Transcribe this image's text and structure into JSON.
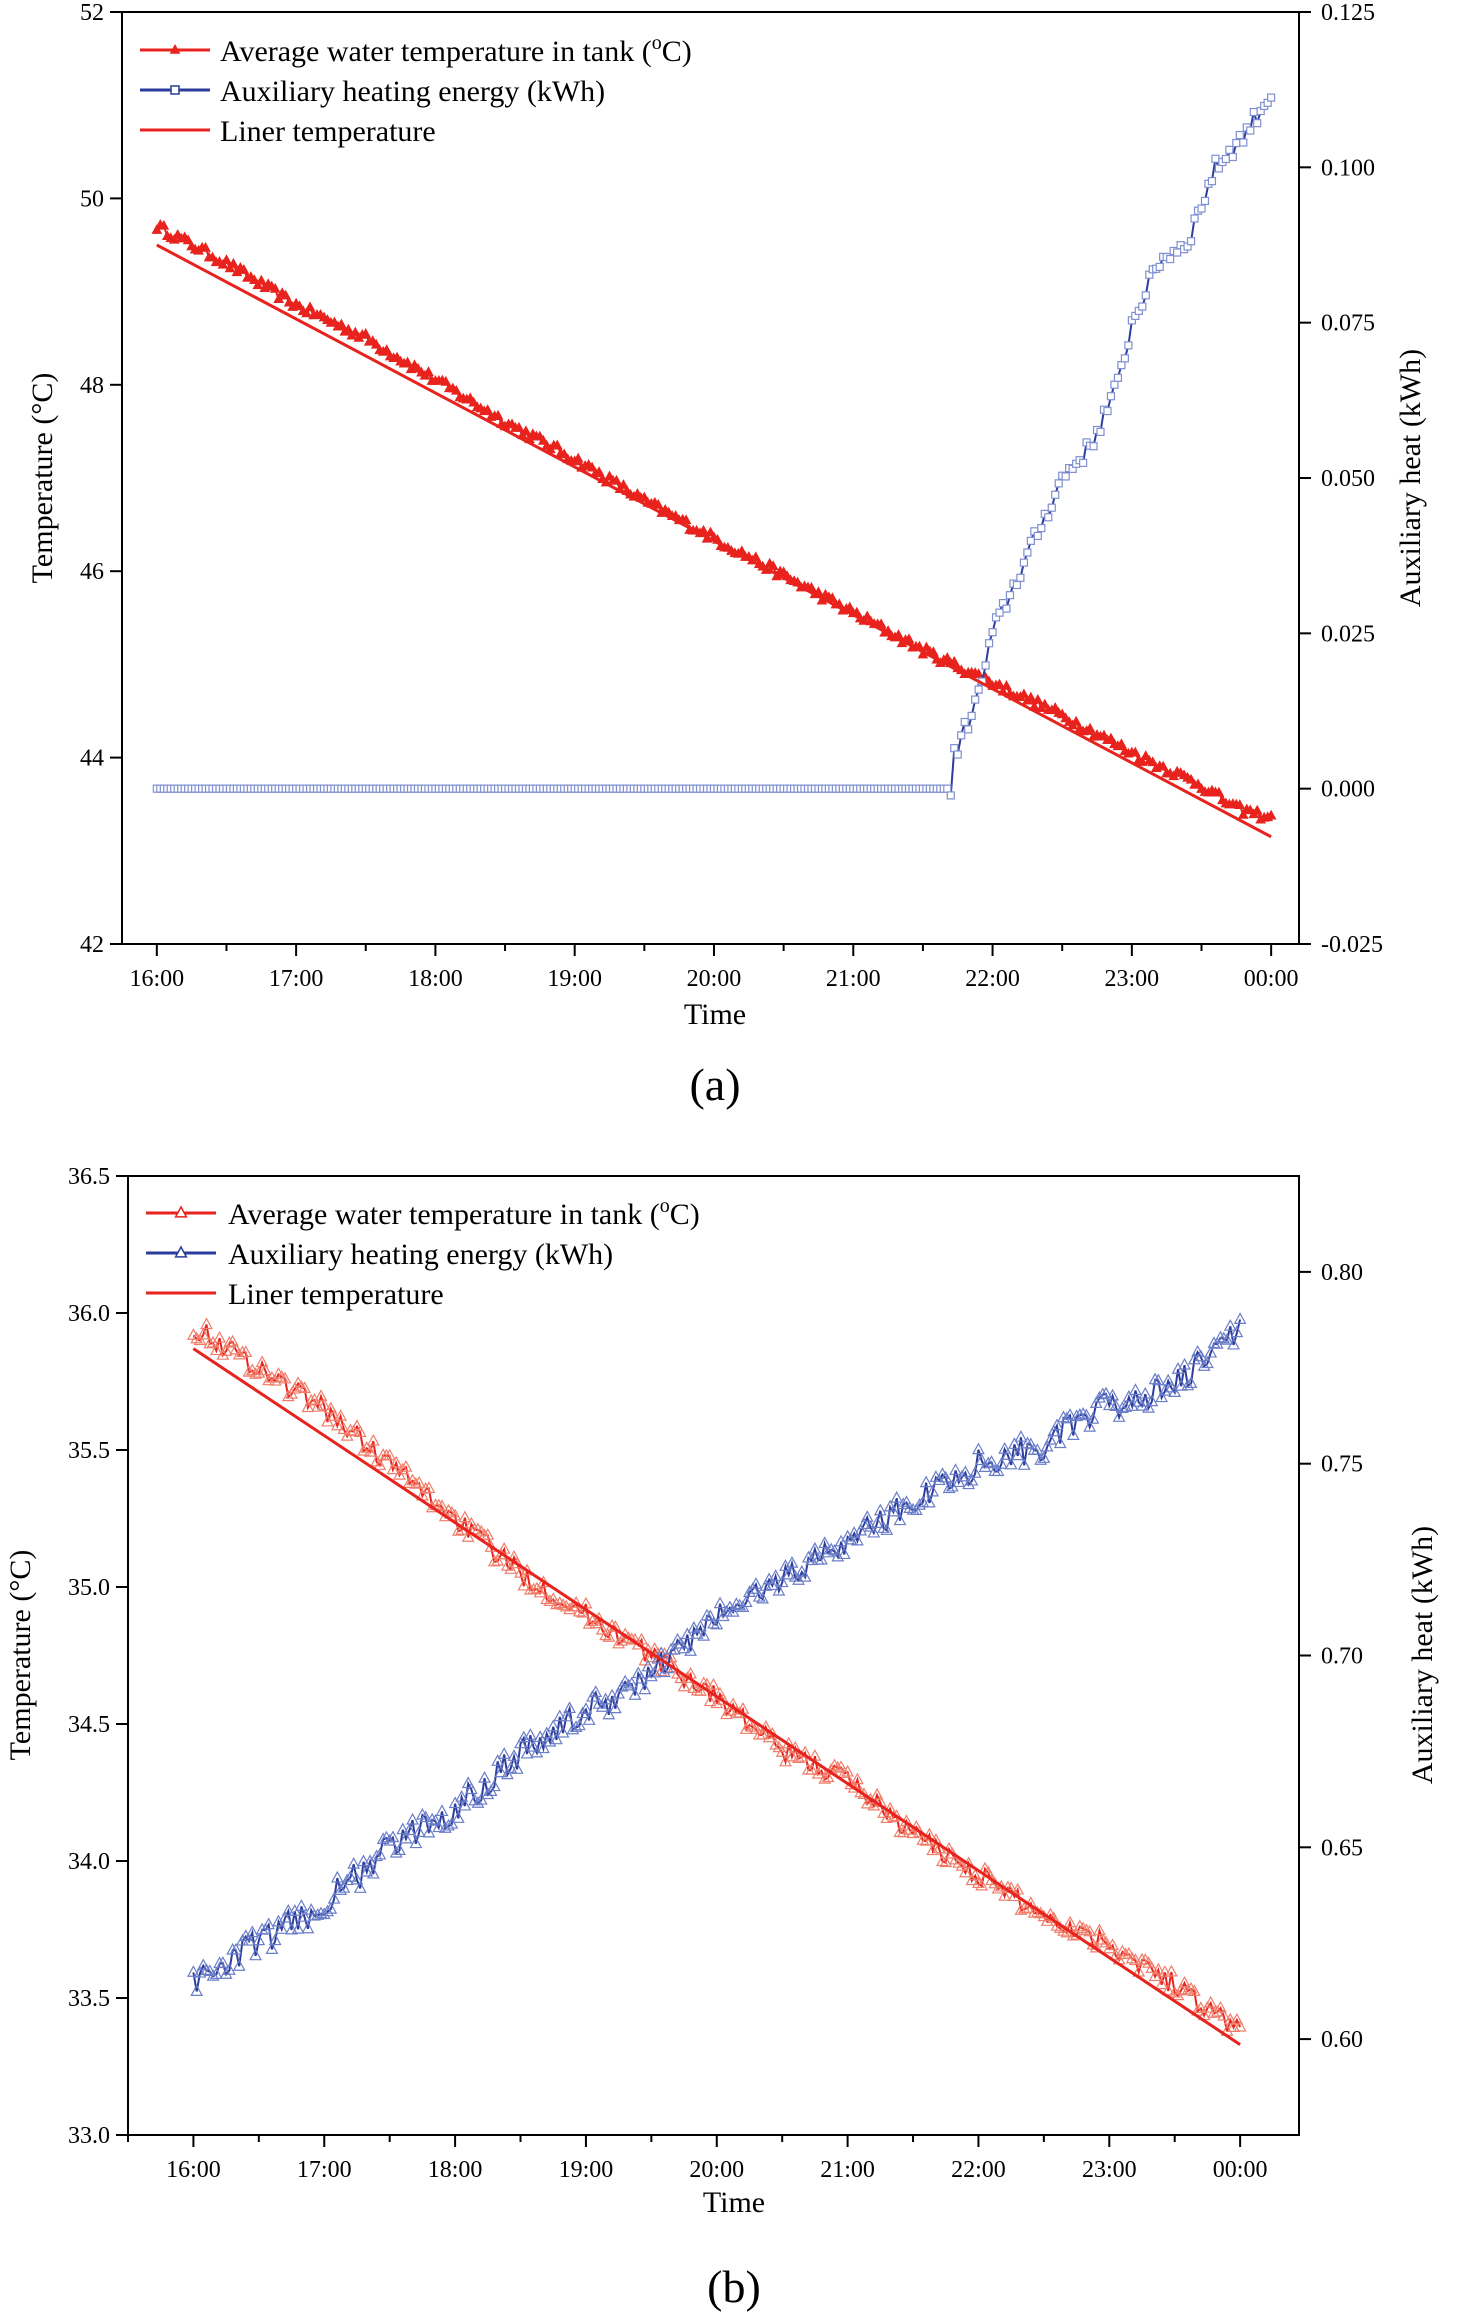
{
  "chart_data": [
    {
      "panel": "a",
      "type": "line",
      "caption": "(a)",
      "xlabel": "Time",
      "ylabel_left": "Temperature (°C)",
      "ylabel_right": "Auxiliary heat (kWh)",
      "x_tick_labels": [
        "16:00",
        "17:00",
        "18:00",
        "19:00",
        "20:00",
        "21:00",
        "22:00",
        "23:00",
        "00:00"
      ],
      "x_range_hours": [
        -0.25,
        8.2
      ],
      "ylim_left": [
        42,
        52
      ],
      "y_ticks_left": [
        42,
        44,
        46,
        48,
        50,
        52
      ],
      "ylim_right": [
        -0.025,
        0.125
      ],
      "y_ticks_right": [
        -0.025,
        0.0,
        0.025,
        0.05,
        0.075,
        0.1,
        0.125
      ],
      "right_tick_labels": [
        "-0.025",
        "0.000",
        "0.025",
        "0.050",
        "0.075",
        "0.100",
        "0.125"
      ],
      "legend": {
        "placement": "top-left",
        "entries": [
          {
            "label_pre": "Average water temperature in tank (",
            "label_sup": "o",
            "label_post": "C)",
            "color": "#e8221c",
            "marker": "triangle-filled"
          },
          {
            "label_pre": "Auxiliary heating energy (kWh)",
            "label_sup": "",
            "label_post": "",
            "color": "#2b3c9c",
            "marker": "square-open"
          },
          {
            "label_pre": "Liner temperature",
            "label_sup": "",
            "label_post": "",
            "color": "#e8221c",
            "marker": "none"
          }
        ]
      },
      "series": [
        {
          "name": "Average water temperature in tank",
          "axis": "left",
          "color": "#e8221c",
          "hours": [
            0,
            0.5,
            1,
            1.5,
            2,
            2.5,
            3,
            3.5,
            4,
            4.5,
            5,
            5.5,
            6,
            6.5,
            7,
            7.5,
            7.75,
            8
          ],
          "values": [
            49.7,
            49.3,
            48.85,
            48.5,
            48.05,
            47.6,
            47.2,
            46.75,
            46.35,
            45.95,
            45.55,
            45.15,
            44.8,
            44.45,
            44.05,
            43.7,
            43.45,
            43.35
          ]
        },
        {
          "name": "Auxiliary heating energy",
          "axis": "right",
          "color": "#2b3c9c",
          "hours": [
            0,
            1,
            2,
            3,
            4,
            5,
            5.7,
            5.72,
            5.9,
            6.0,
            6.1,
            6.2,
            6.3,
            6.5,
            6.7,
            6.9,
            7.0,
            7.2,
            7.4,
            7.6,
            7.8,
            8.0
          ],
          "values": [
            0.0,
            0.0,
            0.0,
            0.0,
            0.0,
            0.0,
            0.0,
            0.005,
            0.015,
            0.025,
            0.03,
            0.035,
            0.04,
            0.05,
            0.055,
            0.065,
            0.075,
            0.085,
            0.088,
            0.1,
            0.105,
            0.112
          ]
        },
        {
          "name": "Liner temperature",
          "axis": "left",
          "color": "#e8221c",
          "hours": [
            0,
            8
          ],
          "values": [
            49.5,
            43.15
          ]
        }
      ]
    },
    {
      "panel": "b",
      "type": "line",
      "caption": "(b)",
      "xlabel": "Time",
      "ylabel_left": "Temperature (°C)",
      "ylabel_right": "Auxiliary heat (kWh)",
      "x_tick_labels": [
        "16:00",
        "17:00",
        "18:00",
        "19:00",
        "20:00",
        "21:00",
        "22:00",
        "23:00",
        "00:00"
      ],
      "x_range_hours": [
        -0.5,
        8.45
      ],
      "ylim_left": [
        33.0,
        36.5
      ],
      "y_ticks_left": [
        33.0,
        33.5,
        34.0,
        34.5,
        35.0,
        35.5,
        36.0,
        36.5
      ],
      "left_tick_labels": [
        "33.0",
        "33.5",
        "34.0",
        "34.5",
        "35.0",
        "35.5",
        "36.0",
        "36.5"
      ],
      "ylim_right": [
        0.575,
        0.825
      ],
      "y_ticks_right": [
        0.6,
        0.65,
        0.7,
        0.75,
        0.8
      ],
      "right_tick_labels": [
        "0.60",
        "0.65",
        "0.70",
        "0.75",
        "0.80"
      ],
      "legend": {
        "placement": "top-left",
        "entries": [
          {
            "label_pre": "Average water temperature in tank (",
            "label_sup": "o",
            "label_post": "C)",
            "color": "#e8221c",
            "marker": "triangle-open"
          },
          {
            "label_pre": "Auxiliary heating energy (kWh)",
            "label_sup": "",
            "label_post": "",
            "color": "#2b3c9c",
            "marker": "triangle-open"
          },
          {
            "label_pre": "Liner temperature",
            "label_sup": "",
            "label_post": "",
            "color": "#e8221c",
            "marker": "none"
          }
        ]
      },
      "series": [
        {
          "name": "Average water temperature in tank",
          "axis": "left",
          "color": "#e8221c",
          "hours": [
            0,
            0.5,
            1,
            1.5,
            2,
            2.5,
            3,
            3.5,
            4,
            4.5,
            5,
            5.5,
            6,
            6.5,
            7,
            7.5,
            7.8,
            8
          ],
          "values": [
            35.95,
            35.8,
            35.65,
            35.45,
            35.25,
            35.05,
            34.9,
            34.75,
            34.6,
            34.4,
            34.3,
            34.1,
            33.95,
            33.8,
            33.7,
            33.55,
            33.45,
            33.38
          ]
        },
        {
          "name": "Auxiliary heating energy",
          "axis": "right",
          "color": "#2b3c9c",
          "hours": [
            0,
            0.5,
            1,
            1.5,
            2,
            2.5,
            3,
            3.5,
            4,
            4.5,
            5,
            5.5,
            6,
            6.5,
            7,
            7.5,
            8
          ],
          "values": [
            0.615,
            0.625,
            0.635,
            0.65,
            0.66,
            0.675,
            0.685,
            0.695,
            0.71,
            0.72,
            0.73,
            0.74,
            0.75,
            0.755,
            0.765,
            0.77,
            0.785
          ]
        },
        {
          "name": "Liner temperature",
          "axis": "left",
          "color": "#e8221c",
          "hours": [
            0,
            8
          ],
          "values": [
            35.87,
            33.33
          ]
        }
      ]
    }
  ]
}
